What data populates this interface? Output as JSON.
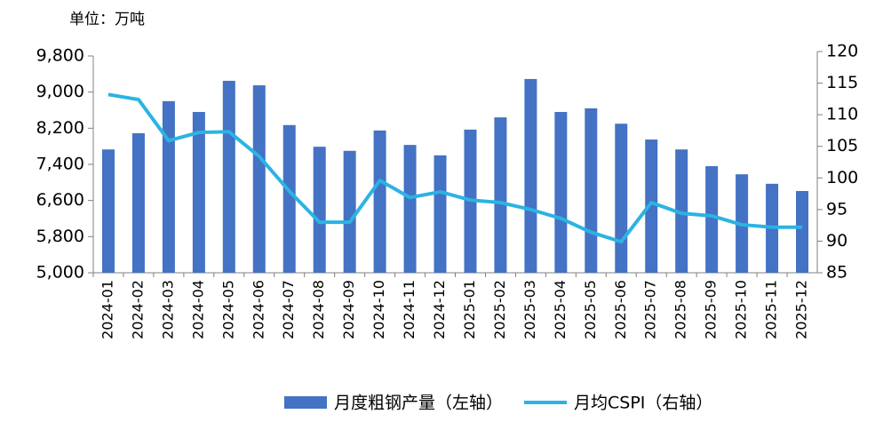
{
  "chart_data": {
    "type": "bar_line",
    "unit_label": "单位：万吨",
    "categories": [
      "2024-01",
      "2024-02",
      "2024-03",
      "2024-04",
      "2024-05",
      "2024-06",
      "2024-07",
      "2024-08",
      "2024-09",
      "2024-10",
      "2024-11",
      "2024-12",
      "2025-01",
      "2025-02",
      "2025-03",
      "2025-04",
      "2025-05",
      "2025-06",
      "2025-07",
      "2025-08",
      "2025-09",
      "2025-10",
      "2025-11",
      "2025-12"
    ],
    "series": [
      {
        "name": "月度粗钢产量（左轴）",
        "color": "#4472c4",
        "kind": "bar",
        "values": [
          7730,
          8090,
          8800,
          8560,
          9250,
          9150,
          8270,
          7790,
          7700,
          8150,
          7830,
          7600,
          8170,
          8440,
          9290,
          8560,
          8640,
          8300,
          7950,
          7730,
          7360,
          7180,
          6970,
          6810
        ]
      },
      {
        "name": "月均CSPI（右轴）",
        "color": "#2bb3e3",
        "kind": "line",
        "axis": "y2",
        "values": [
          113.2,
          112.4,
          105.9,
          107.2,
          107.3,
          103.4,
          97.9,
          93.0,
          93.0,
          99.6,
          96.9,
          97.8,
          96.5,
          96.1,
          95.0,
          93.6,
          91.4,
          89.9,
          96.1,
          94.4,
          94.0,
          92.6,
          92.2,
          92.2
        ]
      }
    ],
    "ylim": [
      5000,
      9800
    ],
    "yticks": [
      {
        "value": 5000,
        "label": "5,000"
      },
      {
        "value": 5800,
        "label": "5,800"
      },
      {
        "value": 6600,
        "label": "6,600"
      },
      {
        "value": 7400,
        "label": "7,400"
      },
      {
        "value": 8200,
        "label": "8,200"
      },
      {
        "value": 9000,
        "label": "9,000"
      },
      {
        "value": 9800,
        "label": "9,800"
      }
    ],
    "y2lim": [
      85,
      120
    ],
    "y2ticks": [
      85,
      90,
      95,
      100,
      105,
      110,
      115,
      120
    ]
  }
}
